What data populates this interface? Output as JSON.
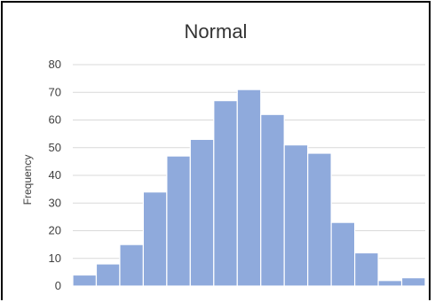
{
  "chart_data": {
    "type": "bar",
    "title": "Normal",
    "xlabel": "",
    "ylabel": "Frequency",
    "ylim": [
      0,
      80
    ],
    "yticks": [
      "0",
      "10",
      "20",
      "30",
      "40",
      "50",
      "60",
      "70",
      "80"
    ],
    "grid": true,
    "bar_color": "#8faadc",
    "values": [
      4,
      8,
      15,
      34,
      47,
      53,
      67,
      71,
      62,
      51,
      48,
      23,
      12,
      2,
      3
    ]
  }
}
